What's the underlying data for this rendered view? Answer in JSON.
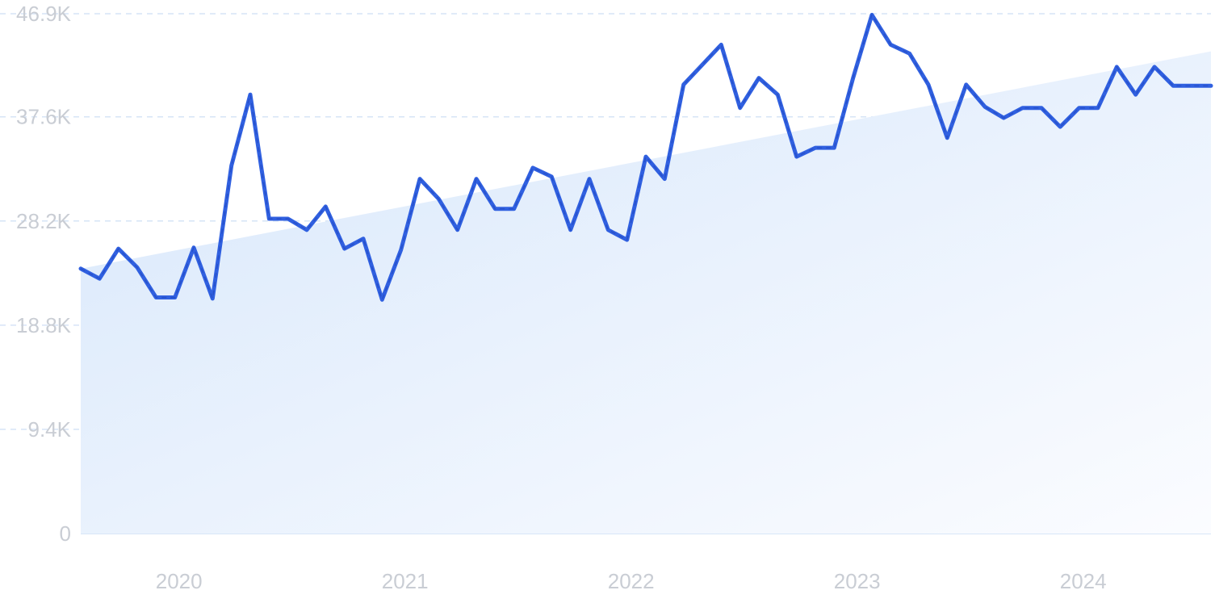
{
  "chart_data": {
    "type": "line",
    "title": "",
    "xlabel": "",
    "ylabel": "",
    "ylim": [
      0,
      46900
    ],
    "grid": true,
    "y_ticks": [
      {
        "value": 0,
        "label": "0"
      },
      {
        "value": 9400,
        "label": "9.4K"
      },
      {
        "value": 18800,
        "label": "18.8K"
      },
      {
        "value": 28200,
        "label": "28.2K"
      },
      {
        "value": 37600,
        "label": "37.6K"
      },
      {
        "value": 46900,
        "label": "46.9K"
      }
    ],
    "x_range": [
      "2019-08",
      "2024-08"
    ],
    "x_ticks": [
      {
        "value": "2020-01",
        "label": "2020"
      },
      {
        "value": "2021-01",
        "label": "2021"
      },
      {
        "value": "2022-01",
        "label": "2022"
      },
      {
        "value": "2023-01",
        "label": "2023"
      },
      {
        "value": "2024-01",
        "label": "2024"
      }
    ],
    "series": [
      {
        "kind": "line",
        "color": "#3060e0",
        "points": [
          [
            "2019-08",
            23900
          ],
          [
            "2019-09",
            23000
          ],
          [
            "2019-10",
            25700
          ],
          [
            "2019-11",
            24000
          ],
          [
            "2019-12",
            21300
          ],
          [
            "2020-01",
            21300
          ],
          [
            "2020-02",
            25800
          ],
          [
            "2020-03",
            21200
          ],
          [
            "2020-04",
            33200
          ],
          [
            "2020-05",
            39600
          ],
          [
            "2020-06",
            28400
          ],
          [
            "2020-07",
            28400
          ],
          [
            "2020-08",
            27400
          ],
          [
            "2020-09",
            29500
          ],
          [
            "2020-10",
            25700
          ],
          [
            "2020-11",
            26600
          ],
          [
            "2020-12",
            21100
          ],
          [
            "2021-01",
            25600
          ],
          [
            "2021-02",
            32000
          ],
          [
            "2021-03",
            30200
          ],
          [
            "2021-04",
            27400
          ],
          [
            "2021-05",
            32000
          ],
          [
            "2021-06",
            29300
          ],
          [
            "2021-07",
            29300
          ],
          [
            "2021-08",
            33000
          ],
          [
            "2021-09",
            32200
          ],
          [
            "2021-10",
            27400
          ],
          [
            "2021-11",
            32000
          ],
          [
            "2021-12",
            27400
          ],
          [
            "2022-01",
            26500
          ],
          [
            "2022-02",
            34000
          ],
          [
            "2022-03",
            32000
          ],
          [
            "2022-04",
            40500
          ],
          [
            "2022-05",
            42300
          ],
          [
            "2022-06",
            44100
          ],
          [
            "2022-07",
            38400
          ],
          [
            "2022-08",
            41100
          ],
          [
            "2022-09",
            39600
          ],
          [
            "2022-10",
            34000
          ],
          [
            "2022-11",
            34800
          ],
          [
            "2022-12",
            34800
          ],
          [
            "2023-01",
            41100
          ],
          [
            "2023-02",
            46800
          ],
          [
            "2023-03",
            44100
          ],
          [
            "2023-04",
            43300
          ],
          [
            "2023-05",
            40500
          ],
          [
            "2023-06",
            35700
          ],
          [
            "2023-07",
            40500
          ],
          [
            "2023-08",
            38500
          ],
          [
            "2023-09",
            37500
          ],
          [
            "2023-10",
            38400
          ],
          [
            "2023-11",
            38400
          ],
          [
            "2023-12",
            36700
          ],
          [
            "2024-01",
            38400
          ],
          [
            "2024-02",
            38400
          ],
          [
            "2024-03",
            42100
          ],
          [
            "2024-04",
            39600
          ],
          [
            "2024-05",
            42100
          ],
          [
            "2024-06",
            40400
          ],
          [
            "2024-07",
            40400
          ],
          [
            "2024-08",
            40400
          ]
        ]
      },
      {
        "kind": "trend-area",
        "color": "#d8e8fb",
        "points": [
          [
            "2019-08",
            23900
          ],
          [
            "2024-08",
            43500
          ]
        ]
      }
    ]
  }
}
